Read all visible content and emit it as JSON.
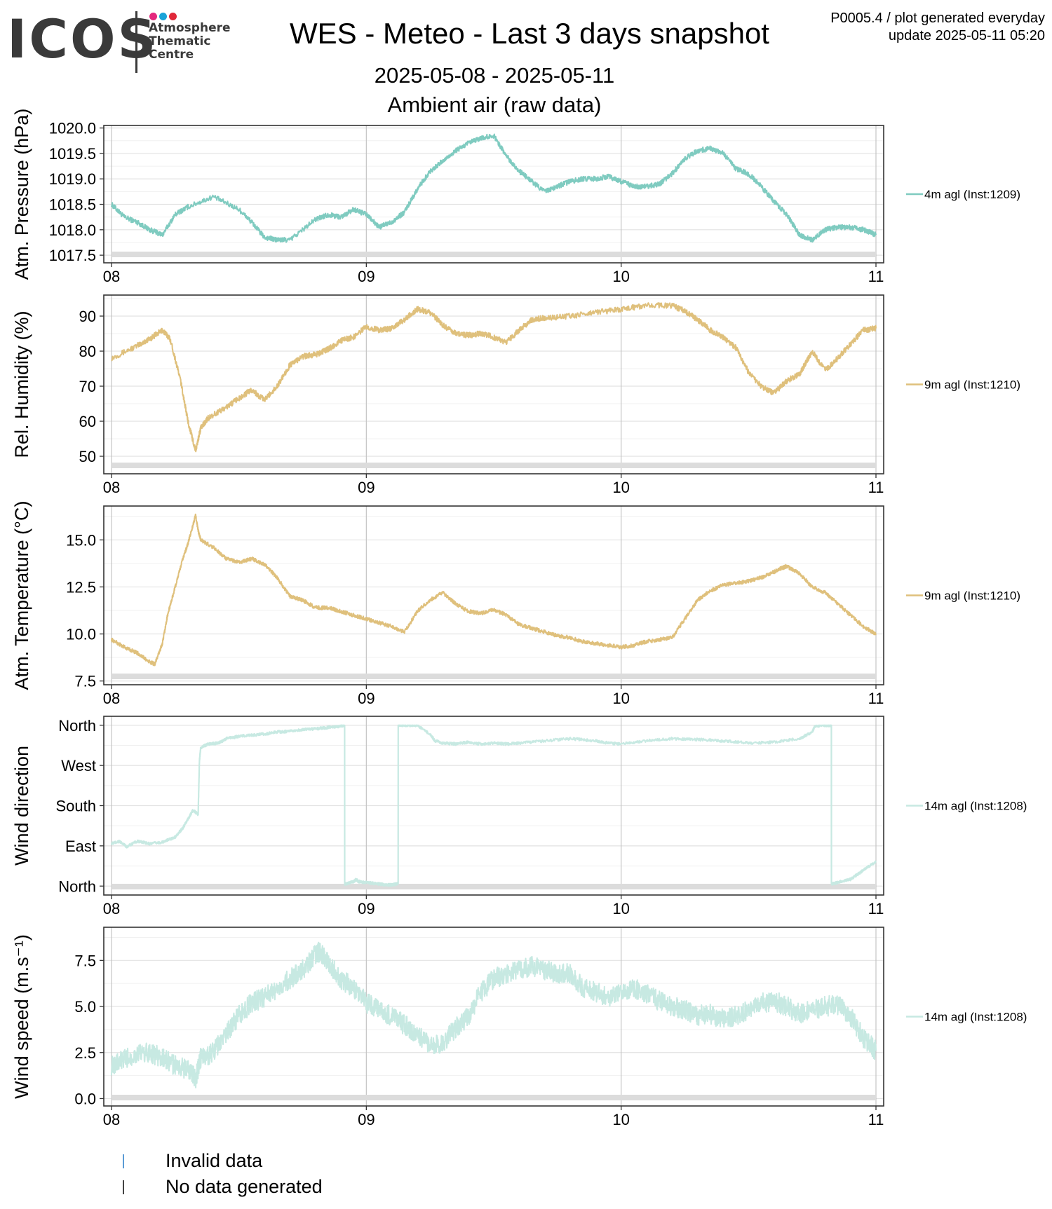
{
  "header": {
    "logo": "ICOS",
    "logo_sub": [
      "Atmosphere",
      "Thematic",
      "Centre"
    ],
    "logo_dot_colors": [
      "#e4287e",
      "#1aa3d8",
      "#e0283a"
    ],
    "title": "WES - Meteo - Last 3 days snapshot",
    "date_range": "2025-05-08 - 2025-05-11",
    "subtitle": "Ambient air (raw data)",
    "meta_line1": "P0005.4 / plot generated everyday",
    "meta_line2": "update  2025-05-11 05:20"
  },
  "chart_data": [
    {
      "type": "line",
      "ylabel": "Atm. Pressure (hPa)",
      "ylim": [
        1017.35,
        1020.05
      ],
      "yticks": [
        1017.5,
        1018.0,
        1018.5,
        1019.0,
        1019.5,
        1020.0
      ],
      "ytick_labels": [
        "1017.5",
        "1018.0",
        "1018.5",
        "1019.0",
        "1019.5",
        "1020.0"
      ],
      "xticks": [
        "08",
        "09",
        "10",
        "11"
      ],
      "xlim": [
        0,
        3
      ],
      "noise": 0.05,
      "series": [
        {
          "name": "4m agl (Inst:1209)",
          "color": "#7fcbc0",
          "x": [
            0,
            0.05,
            0.1,
            0.15,
            0.2,
            0.25,
            0.3,
            0.4,
            0.5,
            0.55,
            0.6,
            0.65,
            0.7,
            0.8,
            0.85,
            0.9,
            0.95,
            1.0,
            1.05,
            1.1,
            1.15,
            1.2,
            1.25,
            1.3,
            1.35,
            1.4,
            1.45,
            1.5,
            1.55,
            1.6,
            1.65,
            1.7,
            1.75,
            1.8,
            1.85,
            1.9,
            1.95,
            2.0,
            2.05,
            2.1,
            2.15,
            2.2,
            2.25,
            2.3,
            2.35,
            2.4,
            2.45,
            2.5,
            2.55,
            2.6,
            2.65,
            2.7,
            2.75,
            2.8,
            2.85,
            2.9,
            2.95,
            3.0
          ],
          "y": [
            1018.5,
            1018.25,
            1018.15,
            1018.0,
            1017.9,
            1018.3,
            1018.45,
            1018.65,
            1018.4,
            1018.15,
            1017.85,
            1017.8,
            1017.8,
            1018.2,
            1018.3,
            1018.25,
            1018.4,
            1018.3,
            1018.05,
            1018.15,
            1018.35,
            1018.8,
            1019.15,
            1019.35,
            1019.55,
            1019.7,
            1019.8,
            1019.85,
            1019.45,
            1019.15,
            1018.95,
            1018.75,
            1018.85,
            1018.95,
            1019.0,
            1019.0,
            1019.05,
            1018.95,
            1018.85,
            1018.85,
            1018.9,
            1019.1,
            1019.4,
            1019.55,
            1019.6,
            1019.5,
            1019.2,
            1019.1,
            1018.85,
            1018.55,
            1018.3,
            1017.9,
            1017.8,
            1018.0,
            1018.05,
            1018.05,
            1018.0,
            1017.9
          ]
        }
      ]
    },
    {
      "type": "line",
      "ylabel": "Rel. Humidity (%)",
      "ylim": [
        45,
        96
      ],
      "yticks": [
        50,
        60,
        70,
        80,
        90
      ],
      "ytick_labels": [
        "50",
        "60",
        "70",
        "80",
        "90"
      ],
      "xticks": [
        "08",
        "09",
        "10",
        "11"
      ],
      "xlim": [
        0,
        3
      ],
      "noise": 0.8,
      "series": [
        {
          "name": "9m agl (Inst:1210)",
          "color": "#dfc07c",
          "x": [
            0,
            0.1,
            0.15,
            0.2,
            0.23,
            0.27,
            0.3,
            0.33,
            0.35,
            0.38,
            0.45,
            0.5,
            0.55,
            0.6,
            0.65,
            0.7,
            0.75,
            0.8,
            0.85,
            0.9,
            0.95,
            1.0,
            1.05,
            1.1,
            1.15,
            1.2,
            1.25,
            1.3,
            1.35,
            1.4,
            1.45,
            1.5,
            1.55,
            1.6,
            1.65,
            1.7,
            1.8,
            1.9,
            2.0,
            2.1,
            2.2,
            2.25,
            2.3,
            2.35,
            2.4,
            2.45,
            2.5,
            2.55,
            2.6,
            2.65,
            2.7,
            2.72,
            2.75,
            2.8,
            2.85,
            2.9,
            2.95,
            3.0
          ],
          "y": [
            78,
            81.5,
            83.5,
            86,
            83.5,
            72,
            60,
            51.5,
            58,
            61,
            64,
            66.5,
            69,
            66,
            70,
            76,
            78.5,
            79,
            80.5,
            83,
            84,
            87,
            86,
            86.5,
            89,
            92,
            91,
            87.5,
            85,
            84.5,
            85,
            84,
            82.5,
            86,
            89,
            89.5,
            90,
            91,
            92,
            93,
            93,
            91.5,
            89,
            86,
            84,
            81,
            74,
            70,
            68,
            71.5,
            73.5,
            76,
            80,
            74.5,
            78,
            82,
            86,
            86.5
          ]
        }
      ]
    },
    {
      "type": "line",
      "ylabel": "Atm. Temperature (°C)",
      "ylim": [
        7.3,
        16.8
      ],
      "yticks": [
        7.5,
        10.0,
        12.5,
        15.0
      ],
      "ytick_labels": [
        "7.5",
        "10.0",
        "12.5",
        "15.0"
      ],
      "xticks": [
        "08",
        "09",
        "10",
        "11"
      ],
      "xlim": [
        0,
        3
      ],
      "noise": 0.1,
      "series": [
        {
          "name": "9m agl (Inst:1210)",
          "color": "#dfc07c",
          "x": [
            0,
            0.05,
            0.1,
            0.15,
            0.17,
            0.2,
            0.22,
            0.25,
            0.28,
            0.3,
            0.33,
            0.34,
            0.35,
            0.4,
            0.45,
            0.5,
            0.55,
            0.6,
            0.65,
            0.7,
            0.75,
            0.8,
            0.85,
            0.9,
            0.95,
            1.0,
            1.05,
            1.1,
            1.15,
            1.2,
            1.25,
            1.3,
            1.35,
            1.4,
            1.45,
            1.5,
            1.55,
            1.6,
            1.65,
            1.7,
            1.75,
            1.8,
            1.85,
            1.9,
            1.95,
            2.0,
            2.05,
            2.1,
            2.15,
            2.2,
            2.25,
            2.3,
            2.35,
            2.4,
            2.45,
            2.5,
            2.55,
            2.6,
            2.63,
            2.65,
            2.7,
            2.75,
            2.8,
            2.85,
            2.9,
            2.95,
            3.0
          ],
          "y": [
            9.7,
            9.3,
            9.0,
            8.5,
            8.4,
            9.5,
            11.0,
            12.5,
            14.0,
            14.8,
            16.3,
            15.5,
            15.0,
            14.6,
            14.0,
            13.8,
            14.0,
            13.7,
            13.0,
            12.0,
            11.8,
            11.4,
            11.4,
            11.2,
            11.0,
            10.8,
            10.6,
            10.4,
            10.1,
            11.2,
            11.8,
            12.2,
            11.6,
            11.2,
            11.1,
            11.3,
            11.0,
            10.5,
            10.3,
            10.1,
            9.9,
            9.8,
            9.6,
            9.5,
            9.4,
            9.3,
            9.4,
            9.6,
            9.7,
            9.8,
            10.8,
            11.8,
            12.3,
            12.6,
            12.7,
            12.8,
            13.0,
            13.3,
            13.5,
            13.6,
            13.2,
            12.5,
            12.2,
            11.6,
            11.0,
            10.4,
            10.0
          ]
        }
      ]
    },
    {
      "type": "scatter",
      "ylabel": "Wind direction",
      "ylim": [
        -20,
        380
      ],
      "yticks": [
        0,
        90,
        180,
        270,
        360
      ],
      "ytick_labels": [
        "North",
        "East",
        "South",
        "West",
        "North"
      ],
      "xticks": [
        "08",
        "09",
        "10",
        "11"
      ],
      "xlim": [
        0,
        3
      ],
      "noise": 3,
      "series": [
        {
          "name": "14m agl (Inst:1208)",
          "color": "#c7e9e2",
          "x": [
            0,
            0.03,
            0.06,
            0.1,
            0.15,
            0.2,
            0.25,
            0.28,
            0.3,
            0.32,
            0.34,
            0.345,
            0.35,
            0.38,
            0.42,
            0.45,
            0.5,
            0.55,
            0.6,
            0.65,
            0.7,
            0.75,
            0.8,
            0.85,
            0.9,
            0.91,
            0.92,
            0.95,
            0.96,
            0.97,
            1.0,
            1.05,
            1.08,
            1.1,
            1.12,
            1.13,
            1.15,
            1.2,
            1.25,
            1.27,
            1.3,
            1.35,
            1.4,
            1.45,
            1.5,
            1.55,
            1.6,
            1.7,
            1.8,
            1.9,
            1.95,
            2.0,
            2.1,
            2.2,
            2.3,
            2.4,
            2.5,
            2.6,
            2.7,
            2.75,
            2.76,
            2.8,
            2.82,
            2.83,
            2.85,
            2.9,
            2.95,
            3.0
          ],
          "y": [
            95,
            100,
            88,
            100,
            95,
            98,
            110,
            130,
            150,
            170,
            160,
            280,
            310,
            318,
            320,
            330,
            335,
            338,
            340,
            345,
            346,
            350,
            352,
            355,
            358,
            360,
            5,
            10,
            15,
            10,
            8,
            5,
            2,
            3,
            5,
            360,
            360,
            360,
            340,
            325,
            320,
            318,
            322,
            318,
            320,
            318,
            320,
            325,
            330,
            325,
            320,
            318,
            325,
            330,
            328,
            325,
            320,
            322,
            330,
            345,
            358,
            360,
            360,
            5,
            8,
            15,
            35,
            55
          ]
        }
      ]
    },
    {
      "type": "line",
      "ylabel": "Wind speed (m.s⁻¹)",
      "ylim": [
        -0.4,
        9.3
      ],
      "yticks": [
        0,
        2.5,
        5,
        7.5
      ],
      "ytick_labels": [
        "0.0",
        "2.5",
        "5.0",
        "7.5"
      ],
      "xticks": [
        "08",
        "09",
        "10",
        "11"
      ],
      "xlim": [
        0,
        3
      ],
      "noise": 0.55,
      "series": [
        {
          "name": "14m agl (Inst:1208)",
          "color": "#c7e9e2",
          "x": [
            0,
            0.05,
            0.1,
            0.15,
            0.2,
            0.25,
            0.3,
            0.33,
            0.35,
            0.4,
            0.45,
            0.5,
            0.55,
            0.6,
            0.65,
            0.7,
            0.75,
            0.8,
            0.82,
            0.85,
            0.9,
            0.95,
            1.0,
            1.05,
            1.1,
            1.15,
            1.2,
            1.25,
            1.3,
            1.35,
            1.4,
            1.45,
            1.5,
            1.55,
            1.6,
            1.65,
            1.7,
            1.75,
            1.8,
            1.85,
            1.9,
            1.95,
            2.0,
            2.05,
            2.1,
            2.15,
            2.2,
            2.25,
            2.3,
            2.35,
            2.4,
            2.45,
            2.5,
            2.55,
            2.6,
            2.65,
            2.7,
            2.75,
            2.8,
            2.85,
            2.9,
            2.95,
            3.0
          ],
          "y": [
            1.8,
            2.1,
            2.4,
            2.5,
            2.2,
            1.8,
            1.6,
            1.1,
            2.2,
            2.5,
            3.5,
            4.5,
            5.2,
            5.5,
            6.0,
            6.5,
            7.0,
            7.8,
            8.0,
            7.4,
            6.5,
            6.0,
            5.2,
            4.8,
            4.5,
            4.0,
            3.5,
            2.8,
            3.0,
            3.8,
            4.5,
            5.8,
            6.5,
            6.8,
            7.0,
            7.2,
            7.0,
            6.8,
            6.8,
            6.0,
            5.8,
            5.5,
            5.8,
            6.0,
            5.7,
            5.3,
            5.0,
            4.8,
            4.5,
            4.6,
            4.3,
            4.5,
            4.8,
            5.2,
            5.3,
            5.0,
            4.6,
            4.8,
            5.0,
            5.1,
            4.5,
            3.3,
            2.6
          ]
        }
      ]
    }
  ],
  "footer": {
    "items": [
      {
        "label": "Invalid data",
        "color": "#5b9bd5"
      },
      {
        "label": "No data generated",
        "color": "#444444"
      }
    ]
  }
}
